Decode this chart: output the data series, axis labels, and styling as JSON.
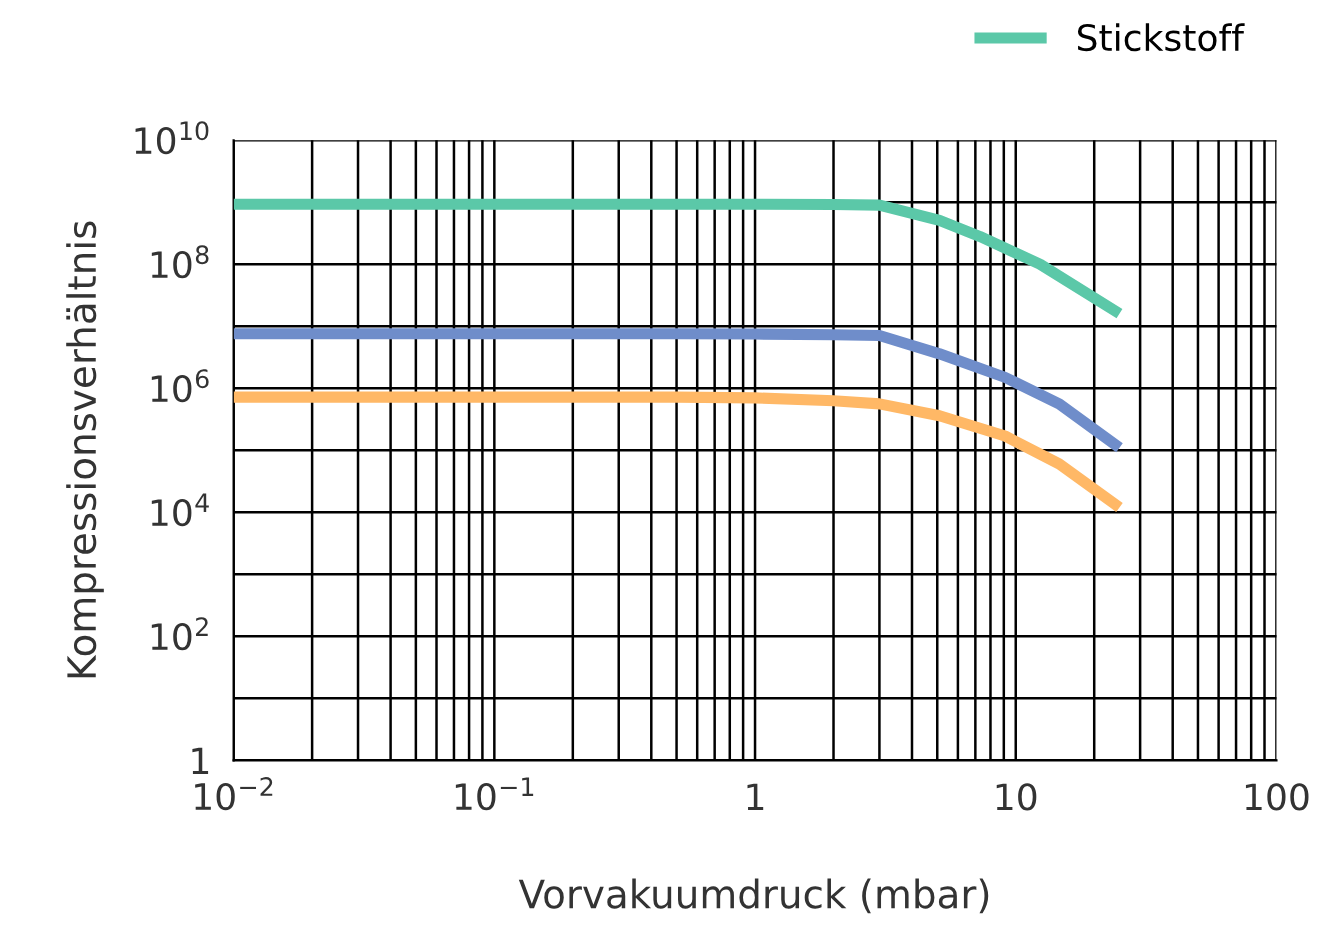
{
  "chart_data": {
    "type": "line",
    "xlabel": "Vorvakuumdruck (mbar)",
    "ylabel": "Kompressionsverhältnis",
    "log": "xy",
    "grid": true,
    "legend": "top right",
    "marker": "none",
    "line_style": "solid",
    "xlim": [
      0.01,
      100
    ],
    "ylim": [
      1,
      10000000000
    ],
    "xticks": [
      {
        "value": 0.01,
        "label": "10$^{−2}$"
      },
      {
        "value": 0.02,
        "label": null
      },
      {
        "value": 0.03,
        "label": null
      },
      {
        "value": 0.04,
        "label": null
      },
      {
        "value": 0.05,
        "label": null
      },
      {
        "value": 0.06,
        "label": null
      },
      {
        "value": 0.07,
        "label": null
      },
      {
        "value": 0.08,
        "label": null
      },
      {
        "value": 0.09,
        "label": null
      },
      {
        "value": 0.1,
        "label": "10$^{−1}$"
      },
      {
        "value": 0.2,
        "label": null
      },
      {
        "value": 0.3,
        "label": null
      },
      {
        "value": 0.4,
        "label": null
      },
      {
        "value": 0.5,
        "label": null
      },
      {
        "value": 0.6,
        "label": null
      },
      {
        "value": 0.7,
        "label": null
      },
      {
        "value": 0.8,
        "label": null
      },
      {
        "value": 0.9,
        "label": null
      },
      1,
      {
        "value": 2,
        "label": null
      },
      {
        "value": 3,
        "label": null
      },
      {
        "value": 4,
        "label": null
      },
      {
        "value": 5,
        "label": null
      },
      {
        "value": 6,
        "label": null
      },
      {
        "value": 7,
        "label": null
      },
      {
        "value": 8,
        "label": null
      },
      {
        "value": 9,
        "label": null
      },
      10,
      {
        "value": 20,
        "label": null
      },
      {
        "value": 30,
        "label": null
      },
      {
        "value": 40,
        "label": null
      },
      {
        "value": 50,
        "label": null
      },
      {
        "value": 60,
        "label": null
      },
      {
        "value": 70,
        "label": null
      },
      {
        "value": 80,
        "label": null
      },
      {
        "value": 90,
        "label": null
      },
      100
    ],
    "yticks": [
      1,
      {
        "value": 10,
        "label": null
      },
      {
        "value": 100,
        "label": "10$^{2}$"
      },
      {
        "value": 1000,
        "label": null
      },
      {
        "value": 10000,
        "label": "10$^{4}$"
      },
      {
        "value": 100000,
        "label": null
      },
      {
        "value": 1000000,
        "label": "10$^{6}$"
      },
      {
        "value": 10000000,
        "label": null
      },
      {
        "value": 100000000,
        "label": "10$^{8}$"
      },
      {
        "value": 1000000000,
        "label": null
      },
      {
        "value": 10000000000,
        "label": "10$^{10}$"
      }
    ],
    "x": [
      0.01,
      0.5,
      1,
      2,
      3,
      5.1,
      7.3,
      9.1,
      12.4,
      14.7,
      25
    ],
    "series": [
      {
        "name": "Stickstoff",
        "color": "#5bc8a8",
        "values": [
          930000000,
          930000000,
          930000000,
          920000000,
          900000000,
          510000000,
          280000000,
          null,
          100000000,
          null,
          16000000
        ]
      },
      {
        "color": "#6f8dca",
        "values": [
          7600000,
          7600000,
          7500000,
          7300000,
          7100000,
          3600000,
          null,
          1500000,
          null,
          560000,
          110000
        ]
      },
      {
        "color": "#ffb866",
        "values": [
          720000,
          720000,
          700000,
          630000,
          560000,
          360000,
          null,
          170000,
          null,
          60000,
          12000
        ]
      }
    ]
  }
}
